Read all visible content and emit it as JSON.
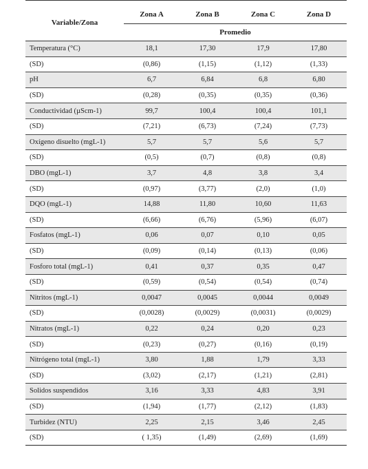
{
  "header": {
    "variable_label": "Variable/Zona",
    "zones": [
      "Zona A",
      "Zona B",
      "Zona C",
      "Zona D"
    ],
    "subheader": "Promedio"
  },
  "rows": [
    {
      "label": "Temperatura (°C)",
      "values": [
        "18,1",
        "17,30",
        "17,9",
        "17,80"
      ]
    },
    {
      "label": "(SD)",
      "values": [
        "(0,86)",
        "(1,15)",
        "(1,12)",
        "(1,33)"
      ]
    },
    {
      "label": "pH",
      "values": [
        "6,7",
        "6,84",
        "6,8",
        "6,80"
      ]
    },
    {
      "label": "(SD)",
      "values": [
        "(0,28)",
        "(0,35)",
        "(0,35)",
        "(0,36)"
      ]
    },
    {
      "label": "Conductividad (µScm-1)",
      "values": [
        "99,7",
        "100,4",
        "100,4",
        "101,1"
      ]
    },
    {
      "label": "(SD)",
      "values": [
        "(7,21)",
        "(6,73)",
        "(7,24)",
        "(7,73)"
      ]
    },
    {
      "label": "Oxígeno disuelto (mgL-1)",
      "values": [
        "5,7",
        "5,7",
        "5,6",
        "5,7"
      ]
    },
    {
      "label": "(SD)",
      "values": [
        "(0,5)",
        "(0,7)",
        "(0,8)",
        "(0,8)"
      ]
    },
    {
      "label": "DBO (mgL-1)",
      "values": [
        "3,7",
        "4,8",
        "3,8",
        "3,4"
      ]
    },
    {
      "label": "(SD)",
      "values": [
        "(0,97)",
        "(3,77)",
        "(2,0)",
        "(1,0)"
      ]
    },
    {
      "label": "DQO (mgL-1)",
      "values": [
        "14,88",
        "11,80",
        "10,60",
        "11,63"
      ]
    },
    {
      "label": "(SD)",
      "values": [
        "(6,66)",
        "(6,76)",
        "(5,96)",
        "(6,07)"
      ]
    },
    {
      "label": "Fosfatos (mgL-1)",
      "values": [
        "0,06",
        "0,07",
        "0,10",
        "0,05"
      ]
    },
    {
      "label": "(SD)",
      "values": [
        "(0,09)",
        "(0,14)",
        "(0,13)",
        "(0,06)"
      ]
    },
    {
      "label": "Fosforo total (mgL-1)",
      "values": [
        "0,41",
        "0,37",
        "0,35",
        "0,47"
      ]
    },
    {
      "label": "(SD)",
      "values": [
        "(0,59)",
        "(0,54)",
        "(0,54)",
        "(0,74)"
      ]
    },
    {
      "label": "Nitritos (mgL-1)",
      "values": [
        "0,0047",
        "0,0045",
        "0,0044",
        "0,0049"
      ]
    },
    {
      "label": "(SD)",
      "values": [
        "(0,0028)",
        "(0,0029)",
        "(0,0031)",
        "(0,0029)"
      ]
    },
    {
      "label": "Nitratos (mgL-1)",
      "values": [
        "0,22",
        "0,24",
        "0,20",
        "0,23"
      ]
    },
    {
      "label": "(SD)",
      "values": [
        "(0,23)",
        "(0,27)",
        "(0,16)",
        "(0,19)"
      ]
    },
    {
      "label": "Nitrógeno total (mgL-1)",
      "values": [
        "3,80",
        "1,88",
        "1,79",
        "3,33"
      ]
    },
    {
      "label": "(SD)",
      "values": [
        "(3,02)",
        "(2,17)",
        "(1,21)",
        "(2,81)"
      ]
    },
    {
      "label": "Solidos suspendidos",
      "values": [
        "3,16",
        "3,33",
        "4,83",
        "3,91"
      ]
    },
    {
      "label": "(SD)",
      "values": [
        "(1,94)",
        "(1,77)",
        "(2,12)",
        "(1,83)"
      ]
    },
    {
      "label": "Turbidez (NTU)",
      "values": [
        "2,25",
        "2,15",
        "3,46",
        "2,45"
      ]
    },
    {
      "label": "(SD)",
      "values": [
        "( 1,35)",
        "(1,49)",
        "(2,69)",
        "(1,69)"
      ]
    }
  ]
}
